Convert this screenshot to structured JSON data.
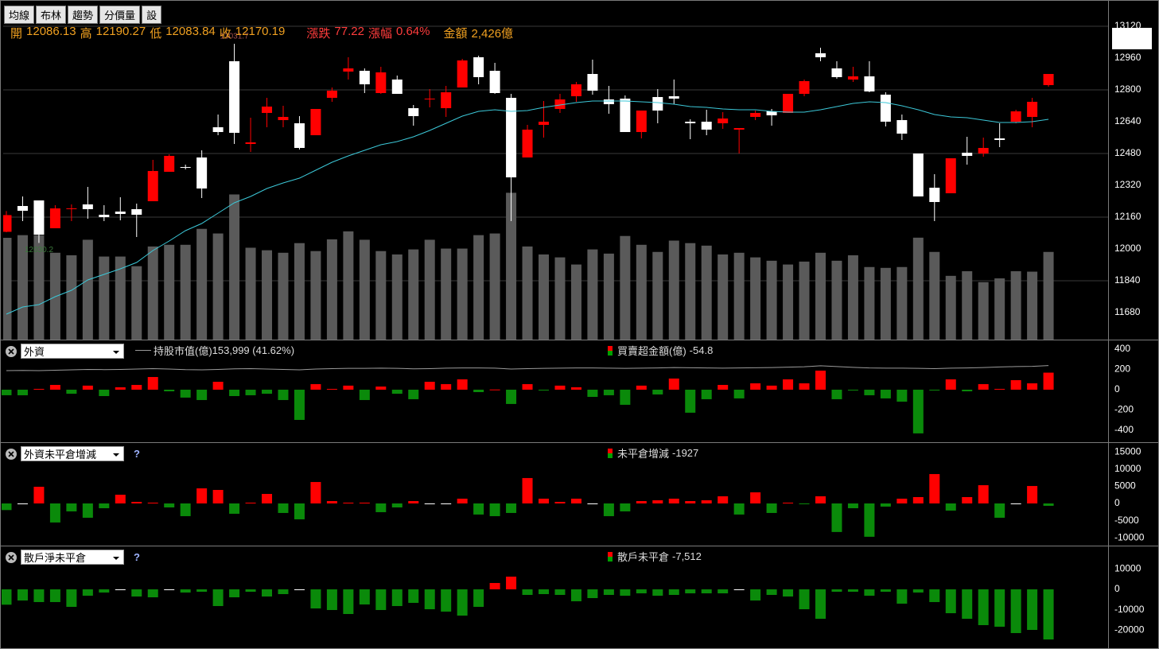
{
  "toolbar": [
    "均線",
    "布林",
    "趨勢",
    "分價量",
    "設"
  ],
  "chart_data": [
    {
      "type": "candlestick",
      "header": [
        {
          "label": "開",
          "value": 12086.13,
          "color": "#f0a020"
        },
        {
          "label": "高",
          "value": 12190.27,
          "color": "#f0a020"
        },
        {
          "label": "低",
          "value": 12083.84,
          "color": "#f0a020"
        },
        {
          "label": "收",
          "value": 12170.19,
          "color": "#f0a020"
        },
        {
          "label": "漲跌",
          "value": 77.22,
          "color": "#ff3c3c"
        },
        {
          "label": "漲幅",
          "value": "0.64%",
          "color": "#ff3c3c"
        },
        {
          "label": "金額",
          "value": "2,426億",
          "color": "#f0a020"
        }
      ],
      "open": [
        12086.13,
        12216,
        12244,
        12104,
        12200,
        12224,
        12172,
        12188,
        12200,
        12240,
        12388,
        12412,
        12460,
        12612,
        12944,
        12528,
        12684,
        12648,
        12632,
        12572,
        12760,
        12892,
        12896,
        12784,
        12852,
        12708,
        12752,
        12708,
        12812,
        12964,
        12896,
        12760,
        12460,
        12624,
        12704,
        12768,
        12880,
        12752,
        12756,
        12588,
        12764,
        12768,
        12640,
        12640,
        12632,
        12600,
        12664,
        12692,
        12684,
        12780,
        12984,
        12908,
        12852,
        12868,
        12776,
        12648,
        12480,
        12308,
        12280,
        12484,
        12480,
        12556,
        12640,
        12664,
        12824
      ],
      "high": [
        12190.27,
        12264,
        12244,
        12220,
        12224,
        12312,
        12220,
        12260,
        12228,
        12448,
        12476,
        12424,
        12496,
        12676,
        13031.7,
        12660,
        12760,
        12720,
        12668,
        12704,
        12812,
        12964,
        12908,
        12916,
        12872,
        12724,
        12804,
        12820,
        12956,
        12972,
        12936,
        12780,
        12624,
        12744,
        12780,
        12840,
        12952,
        12820,
        12772,
        12696,
        12804,
        12852,
        12652,
        12700,
        12688,
        12608,
        12696,
        12704,
        12780,
        12852,
        13012,
        12944,
        12916,
        12944,
        12788,
        12676,
        12480,
        12376,
        12456,
        12564,
        12560,
        12632,
        12700,
        12760,
        12880
      ],
      "low": [
        12083.84,
        12140,
        12030.2,
        12104,
        12140,
        12152,
        12140,
        12144,
        12060,
        12240,
        12388,
        12400,
        12256,
        12572,
        12528,
        12488,
        12612,
        12612,
        12500,
        12572,
        12740,
        12852,
        12784,
        12780,
        12780,
        12620,
        12712,
        12664,
        12812,
        12828,
        12780,
        12140,
        12460,
        12560,
        12684,
        12740,
        12776,
        12680,
        12588,
        12556,
        12632,
        12728,
        12552,
        12572,
        12604,
        12480,
        12648,
        12620,
        12684,
        12768,
        12944,
        12856,
        12840,
        12788,
        12616,
        12548,
        12264,
        12140,
        12280,
        12424,
        12464,
        12512,
        12632,
        12612,
        12816
      ],
      "close": [
        12170.19,
        12192,
        12072,
        12204,
        12204,
        12200,
        12160,
        12176,
        12172,
        12392,
        12468,
        12408,
        12304,
        12588,
        12584,
        12536,
        12716,
        12664,
        12508,
        12704,
        12796,
        12908,
        12828,
        12888,
        12780,
        12668,
        12756,
        12788,
        12948,
        12864,
        12784,
        12360,
        12600,
        12640,
        12752,
        12828,
        12796,
        12728,
        12588,
        12696,
        12696,
        12756,
        12632,
        12600,
        12656,
        12608,
        12684,
        12672,
        12780,
        12844,
        12964,
        12864,
        12868,
        12792,
        12640,
        12580,
        12264,
        12236,
        12456,
        12468,
        12508,
        12548,
        12692,
        12740,
        12880
      ],
      "up_color": "#ff0000",
      "down_color": "#ffffff",
      "ma": {
        "color": "#3cc8d8",
        "values": [
          11672,
          11708,
          11720,
          11760,
          11792,
          11844,
          11872,
          11900,
          11932,
          11992,
          12040,
          12092,
          12128,
          12180,
          12232,
          12264,
          12304,
          12332,
          12356,
          12396,
          12436,
          12468,
          12496,
          12524,
          12540,
          12564,
          12596,
          12632,
          12668,
          12692,
          12700,
          12692,
          12696,
          12712,
          12724,
          12736,
          12744,
          12744,
          12744,
          12740,
          12736,
          12728,
          12716,
          12712,
          12704,
          12700,
          12700,
          12692,
          12688,
          12688,
          12700,
          12716,
          12732,
          12740,
          12736,
          12720,
          12700,
          12676,
          12664,
          12660,
          12648,
          12636,
          12636,
          12640,
          12652
        ]
      },
      "volume": {
        "color": "#5a5a5a",
        "ylim": [
          0,
          8000
        ],
        "values": [
          2426,
          2490,
          2490,
          2070,
          2010,
          2380,
          1980,
          1980,
          1750,
          2220,
          2260,
          2260,
          2640,
          2530,
          3460,
          2190,
          2130,
          2070,
          2300,
          2110,
          2390,
          2580,
          2380,
          2110,
          2030,
          2150,
          2380,
          2170,
          2170,
          2490,
          2530,
          3500,
          2220,
          2030,
          1960,
          1790,
          2150,
          2050,
          2470,
          2260,
          2090,
          2360,
          2300,
          2240,
          2030,
          2070,
          1960,
          1880,
          1790,
          1860,
          2070,
          1880,
          2010,
          1730,
          1710,
          1730,
          2430,
          2090,
          1520,
          1630,
          1370,
          1460,
          1630,
          1620,
          2090
        ]
      },
      "annotations": [
        {
          "label": "13031.7",
          "value": 13031.7,
          "color": "#a05050"
        },
        {
          "label": "12030.2",
          "value": 12030.2,
          "color": "#3c7a3c"
        }
      ],
      "ylim": [
        11544,
        13232
      ],
      "yticks": [
        11680,
        11840,
        12000,
        12160,
        12320,
        12480,
        12640,
        12800,
        12960,
        13120
      ],
      "grid": true
    },
    {
      "type": "bar",
      "selector": "外資",
      "name": "買賣超金額(億)",
      "values": [
        -54.8,
        -55,
        8,
        47,
        -40,
        40,
        -63,
        24,
        47,
        125,
        -16,
        -78,
        -102,
        78,
        -63,
        -55,
        -40,
        -102,
        -298,
        55,
        8,
        40,
        -102,
        31,
        -40,
        -94,
        78,
        55,
        102,
        -24,
        2,
        -141,
        55,
        -8,
        40,
        24,
        -71,
        -55,
        -149,
        40,
        -47,
        110,
        -227,
        -94,
        47,
        -86,
        63,
        40,
        102,
        63,
        188,
        -94,
        -8,
        -55,
        -86,
        -118,
        -431,
        -2,
        102,
        -16,
        55,
        8,
        94,
        63,
        168
      ],
      "ylim": [
        -518,
        486
      ],
      "yticks": [
        400,
        200,
        0,
        -200,
        -400
      ],
      "up_color": "#ff0000",
      "down_color": "#0a8a0a",
      "zero_color": "#ffffff",
      "line": {
        "name": "持股市值(億)",
        "label": "153,999 (41.62%)",
        "color": "#9a9a9a",
        "values": [
          188,
          190,
          188,
          192,
          196,
          200,
          198,
          200,
          204,
          208,
          204,
          198,
          196,
          200,
          206,
          208,
          204,
          200,
          196,
          204,
          208,
          210,
          210,
          212,
          210,
          206,
          208,
          212,
          214,
          214,
          212,
          204,
          208,
          210,
          212,
          214,
          214,
          212,
          210,
          212,
          214,
          218,
          216,
          214,
          212,
          214,
          216,
          218,
          222,
          226,
          236,
          228,
          220,
          214,
          212,
          212,
          210,
          208,
          212,
          214,
          218,
          224,
          228,
          230,
          238
        ]
      }
    },
    {
      "type": "bar",
      "selector": "外資未平倉增減",
      "help": "?",
      "name": "未平倉增減",
      "values": [
        -1927,
        0,
        4850,
        -5540,
        -2310,
        -4160,
        -1390,
        2540,
        460,
        230,
        -1160,
        -3700,
        4390,
        3930,
        -3000,
        230,
        2770,
        -2770,
        -4620,
        6240,
        690,
        230,
        230,
        -2540,
        -1160,
        690,
        0,
        0,
        1390,
        -3230,
        -3700,
        -2770,
        7390,
        1390,
        460,
        1390,
        0,
        -3700,
        -2310,
        690,
        920,
        1390,
        690,
        920,
        2080,
        -3230,
        3230,
        -2770,
        230,
        -230,
        2080,
        -8310,
        -1390,
        -9700,
        -920,
        1390,
        1850,
        8550,
        -2080,
        1850,
        5310,
        -4160,
        0,
        5080,
        -690
      ],
      "ylim": [
        -12270,
        17590
      ],
      "yticks": [
        15000,
        10000,
        5000,
        0,
        -5000,
        -10000
      ],
      "up_color": "#ff0000",
      "down_color": "#0a8a0a",
      "zero_color": "#ffffff"
    },
    {
      "type": "bar",
      "selector": "散戶淨未平倉",
      "help": "?",
      "name": "散戶未平倉",
      "values": [
        -7512,
        -5450,
        -6220,
        -6220,
        -8560,
        -3110,
        -1560,
        0,
        -3500,
        -3890,
        0,
        -1560,
        -1170,
        -8170,
        -3890,
        -1170,
        -3500,
        -2330,
        0,
        -9340,
        -10110,
        -12060,
        -7390,
        -10110,
        -8170,
        -6610,
        -9730,
        -10890,
        -12840,
        -8560,
        3110,
        6220,
        -2720,
        -2330,
        -2720,
        -5830,
        -4280,
        -2720,
        -3110,
        -1950,
        -3110,
        -2720,
        -1950,
        -1950,
        -1950,
        0,
        -5450,
        -2720,
        -3500,
        -9730,
        -14390,
        -1170,
        -1170,
        -3110,
        -1170,
        -7000,
        -1560,
        -6220,
        -11670,
        -14390,
        -17500,
        -18280,
        -21390,
        -19840,
        -24510
      ],
      "value_labels": [
        "-7,512",
        null,
        null,
        null,
        null,
        null,
        null,
        null,
        null,
        null,
        null,
        null,
        null,
        null,
        null,
        null,
        null,
        null,
        null,
        null,
        null,
        null,
        null,
        null,
        null,
        null,
        null,
        null,
        null,
        null,
        null,
        null,
        null,
        null,
        null,
        null,
        null,
        null,
        null,
        null,
        null,
        null,
        null,
        null,
        null,
        null,
        null,
        null,
        null,
        null,
        null,
        null,
        null,
        null,
        null,
        null,
        null,
        null,
        null,
        null,
        null,
        null,
        null,
        null,
        null
      ],
      "ylim": [
        -28790,
        21010
      ],
      "yticks": [
        10000,
        0,
        -10000,
        -20000
      ],
      "up_color": "#ff0000",
      "down_color": "#0a8a0a",
      "zero_color": "#ffffff"
    }
  ]
}
